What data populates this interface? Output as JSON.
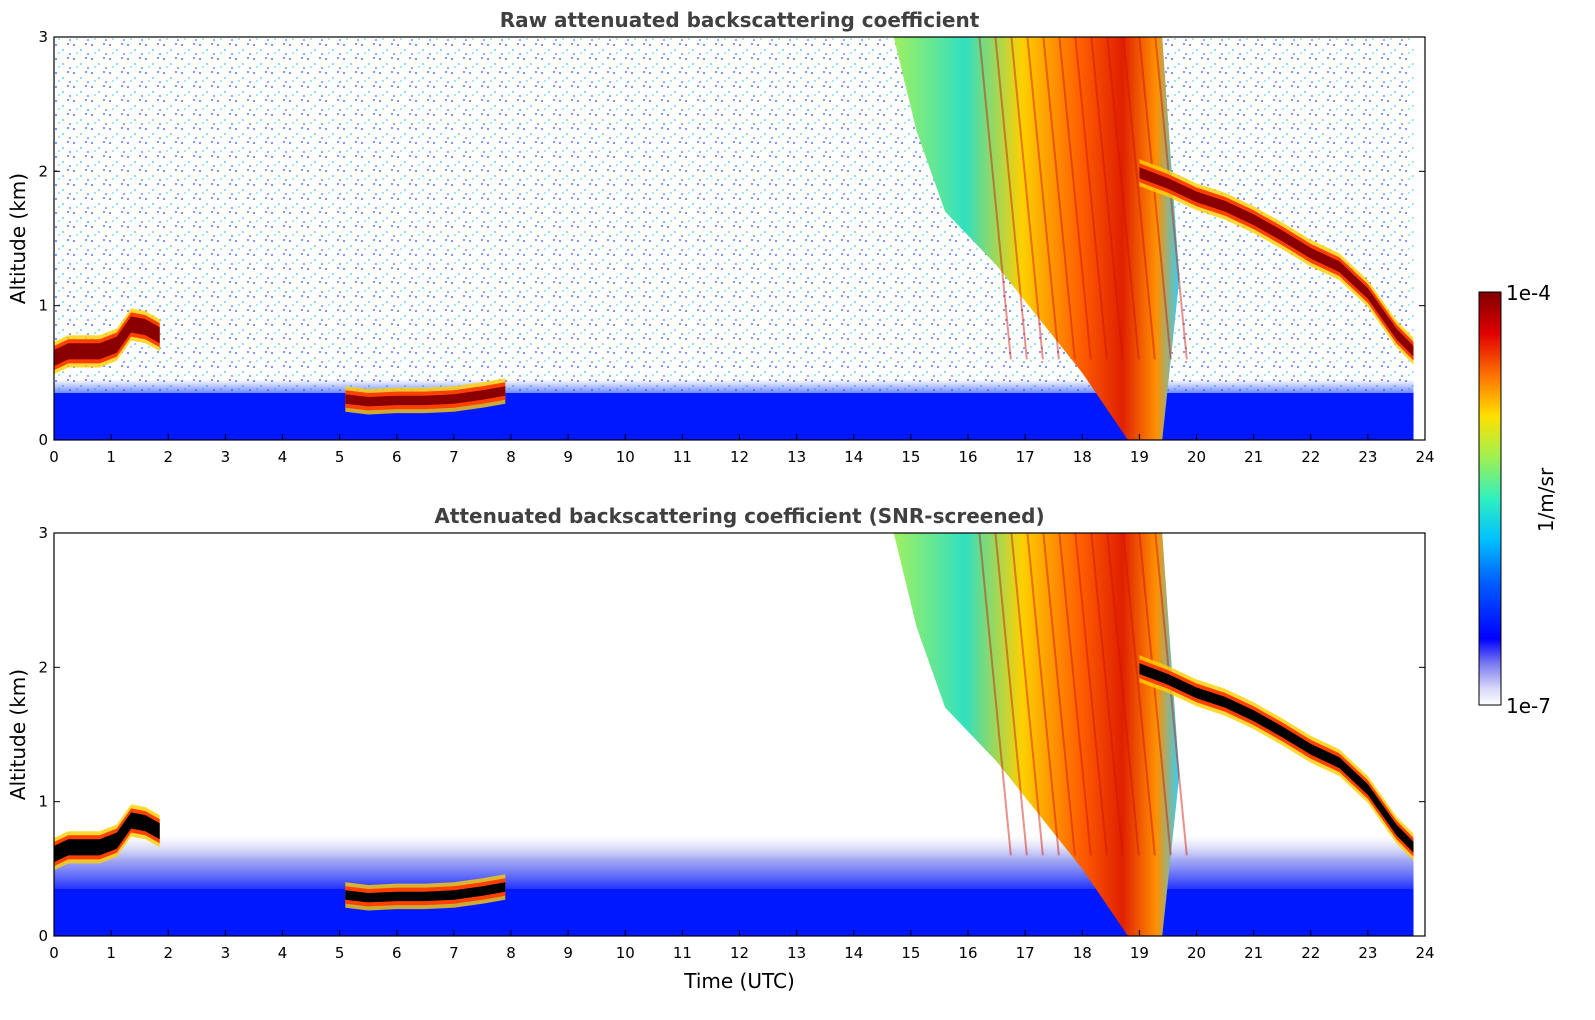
{
  "chart_data": [
    {
      "type": "heatmap",
      "title": "Raw attenuated backscattering coefficient",
      "xlabel": "",
      "ylabel": "Altitude (km)",
      "xlim": [
        0,
        24
      ],
      "ylim": [
        0,
        3
      ],
      "xticks": [
        "0",
        "1",
        "2",
        "3",
        "4",
        "5",
        "6",
        "7",
        "8",
        "9",
        "10",
        "11",
        "12",
        "13",
        "14",
        "15",
        "16",
        "17",
        "18",
        "19",
        "20",
        "21",
        "22",
        "23",
        "24"
      ],
      "yticks": [
        "0",
        "1",
        "2",
        "3"
      ],
      "colormap": "jet",
      "colorbar": {
        "label": "1/m/sr",
        "min_label": "1e-7",
        "max_label": "1e-4",
        "min": 1e-07,
        "max": 0.0001,
        "scale": "log"
      },
      "screened": false,
      "features": {
        "boundary_layer_top_km": 0.45,
        "morning_cloud": {
          "time_utc": [
            0.0,
            0.25,
            0.5,
            0.8,
            1.1,
            1.35,
            1.6,
            1.85
          ],
          "base_km": [
            0.55,
            0.6,
            0.6,
            0.6,
            0.65,
            0.8,
            0.78,
            0.72
          ]
        },
        "low_cloud": {
          "time_utc": [
            5.1,
            5.5,
            6.0,
            6.5,
            7.0,
            7.5,
            7.9
          ],
          "base_km": [
            0.27,
            0.25,
            0.26,
            0.26,
            0.27,
            0.3,
            0.33
          ]
        },
        "precipitation_virga": {
          "start_time_utc": 14.7,
          "end_time_utc": 19.7,
          "core_time_utc": 18.5,
          "top_km": 3.0
        },
        "cirrus_layer": {
          "time_utc": [
            19.0,
            19.5,
            20.0,
            20.5,
            21.0,
            21.5,
            22.0,
            22.5,
            23.0,
            23.5,
            23.8
          ],
          "base_km": [
            1.95,
            1.87,
            1.77,
            1.7,
            1.6,
            1.48,
            1.35,
            1.25,
            1.05,
            0.75,
            0.62
          ]
        },
        "data_end_time_utc": 23.8
      }
    },
    {
      "type": "heatmap",
      "title": "Attenuated backscattering coefficient (SNR-screened)",
      "xlabel": "Time (UTC)",
      "ylabel": "Altitude (km)",
      "xlim": [
        0,
        24
      ],
      "ylim": [
        0,
        3
      ],
      "xticks": [
        "0",
        "1",
        "2",
        "3",
        "4",
        "5",
        "6",
        "7",
        "8",
        "9",
        "10",
        "11",
        "12",
        "13",
        "14",
        "15",
        "16",
        "17",
        "18",
        "19",
        "20",
        "21",
        "22",
        "23",
        "24"
      ],
      "yticks": [
        "0",
        "1",
        "2",
        "3"
      ],
      "colormap": "jet",
      "colorbar": {
        "label": "1/m/sr",
        "min_label": "1e-7",
        "max_label": "1e-4",
        "min": 1e-07,
        "max": 0.0001,
        "scale": "log"
      },
      "screened": true,
      "features": {
        "boundary_layer_top_km": 0.75,
        "morning_cloud": {
          "time_utc": [
            0.0,
            0.25,
            0.5,
            0.8,
            1.1,
            1.35,
            1.6,
            1.85
          ],
          "base_km": [
            0.55,
            0.6,
            0.6,
            0.6,
            0.65,
            0.8,
            0.78,
            0.72
          ]
        },
        "low_cloud": {
          "time_utc": [
            5.1,
            5.5,
            6.0,
            6.5,
            7.0,
            7.5,
            7.9
          ],
          "base_km": [
            0.27,
            0.25,
            0.26,
            0.26,
            0.27,
            0.3,
            0.33
          ]
        },
        "precipitation_virga": {
          "start_time_utc": 14.7,
          "end_time_utc": 19.7,
          "core_time_utc": 18.5,
          "top_km": 3.0
        },
        "cirrus_layer": {
          "time_utc": [
            19.0,
            19.5,
            20.0,
            20.5,
            21.0,
            21.5,
            22.0,
            22.5,
            23.0,
            23.5,
            23.8
          ],
          "base_km": [
            1.95,
            1.87,
            1.77,
            1.7,
            1.6,
            1.48,
            1.35,
            1.25,
            1.05,
            0.75,
            0.62
          ]
        },
        "data_end_time_utc": 23.8
      }
    }
  ]
}
